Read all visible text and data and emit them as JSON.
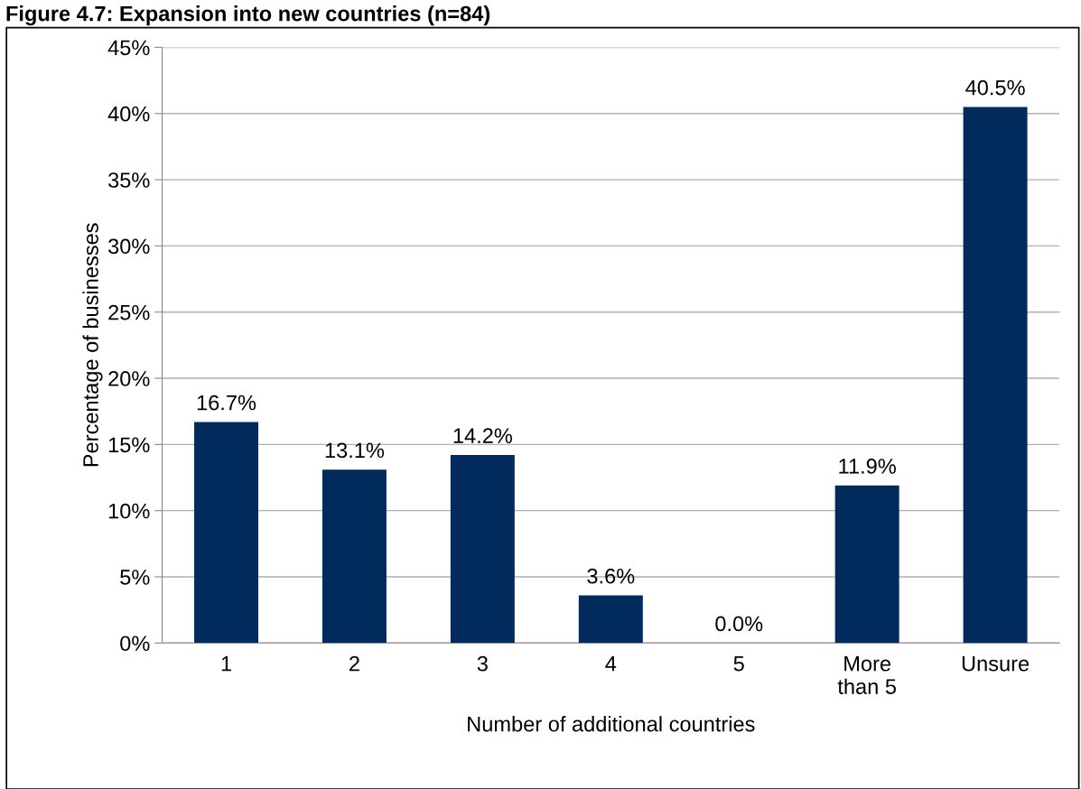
{
  "chart_data": {
    "type": "bar",
    "title": "Figure 4.7: Expansion into new countries (n=84)",
    "xlabel": "Number of additional countries",
    "ylabel": "Percentage of businesses",
    "categories": [
      "1",
      "2",
      "3",
      "4",
      "5",
      "More\nthan 5",
      "Unsure"
    ],
    "values": [
      16.7,
      13.1,
      14.2,
      3.6,
      0.0,
      11.9,
      40.5
    ],
    "value_labels": [
      "16.7%",
      "13.1%",
      "14.2%",
      "3.6%",
      "0.0%",
      "11.9%",
      "40.5%"
    ],
    "color": "#002b5c",
    "ylim": [
      0,
      45
    ],
    "yticks": [
      {
        "value": 0,
        "label": "0%"
      },
      {
        "value": 5,
        "label": "5%"
      },
      {
        "value": 10,
        "label": "10%"
      },
      {
        "value": 15,
        "label": "15%"
      },
      {
        "value": 20,
        "label": "20%"
      },
      {
        "value": 25,
        "label": "25%"
      },
      {
        "value": 30,
        "label": "30%"
      },
      {
        "value": 35,
        "label": "35%"
      },
      {
        "value": 40,
        "label": "40%"
      },
      {
        "value": 45,
        "label": "45%"
      }
    ],
    "grid": "y"
  }
}
